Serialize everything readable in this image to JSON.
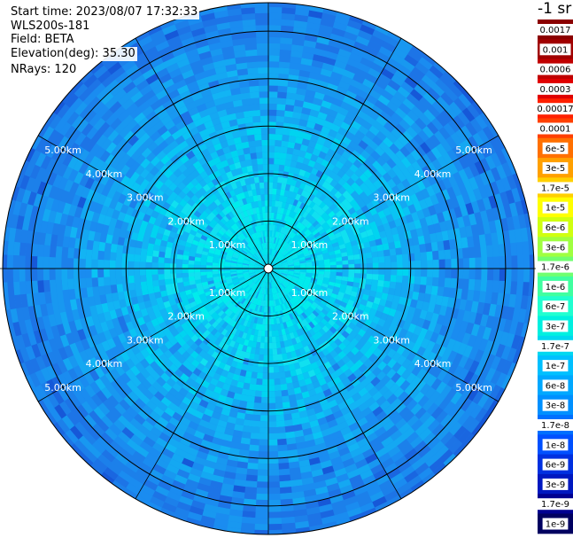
{
  "info": {
    "start_time": "Start time: 2023/08/07 17:32:33",
    "instrument": "WLS200s-181",
    "field": "Field: BETA",
    "elevation": "Elevation(deg): 35.30",
    "nrays": "NRays: 120"
  },
  "chart_data": {
    "type": "heatmap",
    "projection": "polar",
    "range_rings": [
      {
        "value": 1,
        "label": "1.00km"
      },
      {
        "value": 2,
        "label": "2.00km"
      },
      {
        "value": 3,
        "label": "3.00km"
      },
      {
        "value": 4,
        "label": "4.00km"
      },
      {
        "value": 5,
        "label": "5.00km"
      }
    ],
    "max_range_km": 5.6,
    "spoke_angles_deg": [
      0,
      30,
      60,
      90,
      120,
      150,
      180,
      210,
      240,
      270,
      300,
      330
    ],
    "colorbar": {
      "unit": "-1 sr",
      "labels": [
        "0.0017",
        "0.001",
        "0.0006",
        "0.0003",
        "0.00017",
        "0.0001",
        "6e-5",
        "3e-5",
        "1.7e-5",
        "1e-5",
        "6e-6",
        "3e-6",
        "1.7e-6",
        "1e-6",
        "6e-7",
        "3e-7",
        "1.7e-7",
        "1e-7",
        "6e-8",
        "3e-8",
        "1.7e-8",
        "1e-8",
        "6e-9",
        "3e-9",
        "1.7e-9",
        "1e-9"
      ],
      "colors": [
        "#8b0000",
        "#a00000",
        "#c00000",
        "#e00000",
        "#ff2000",
        "#ff4000",
        "#ff7000",
        "#ffa000",
        "#ffd000",
        "#ffff00",
        "#d0ff10",
        "#a0ff40",
        "#70ff70",
        "#40ffa0",
        "#20ffd0",
        "#00f0e0",
        "#00d8f0",
        "#00c0ff",
        "#00a8ff",
        "#0090ff",
        "#0070ff",
        "#0050ff",
        "#0030e0",
        "#0018c0",
        "#000090",
        "#000060"
      ]
    }
  }
}
